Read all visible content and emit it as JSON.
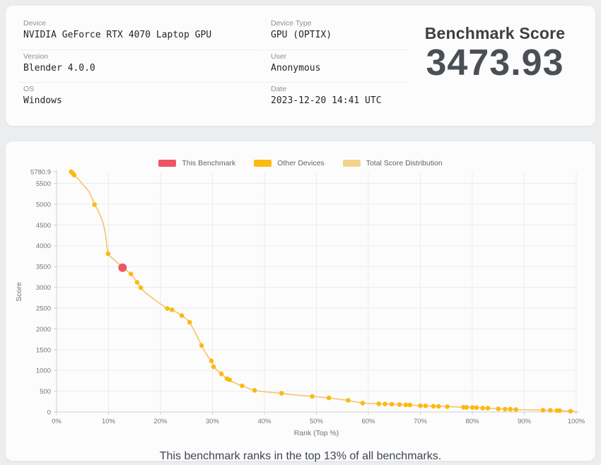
{
  "info_card": {
    "columns": [
      {
        "fields": [
          {
            "label": "Device",
            "value": "NVIDIA GeForce RTX 4070 Laptop GPU"
          },
          {
            "label": "Version",
            "value": "Blender 4.0.0"
          },
          {
            "label": "OS",
            "value": "Windows"
          }
        ]
      },
      {
        "fields": [
          {
            "label": "Device Type",
            "value": "GPU (OPTIX)"
          },
          {
            "label": "User",
            "value": "Anonymous"
          },
          {
            "label": "Date",
            "value": "2023-12-20 14:41 UTC"
          }
        ]
      }
    ],
    "score_title": "Benchmark Score",
    "score_value": "3473.93"
  },
  "chart_card": {
    "caption": "This benchmark ranks in the top 13% of all benchmarks."
  },
  "chart_data": {
    "type": "line",
    "title": "",
    "xlabel": "Rank (Top %)",
    "ylabel": "Score",
    "xlim": [
      0,
      100
    ],
    "ylim": [
      0,
      5780.9
    ],
    "grid": true,
    "legend_position": "top-center",
    "legend": [
      {
        "label": "This Benchmark",
        "color": "#ee5464"
      },
      {
        "label": "Other Devices",
        "color": "#fcba10"
      },
      {
        "label": "Total Score Distribution",
        "color": "#f5d38d"
      }
    ],
    "colors": {
      "grid": "#ebebeb",
      "axis": "#cfcfcf",
      "line": "#f5c979",
      "dot": "#fcba10",
      "benchmark": "#ee5464"
    },
    "x_ticks": [
      {
        "v": 0,
        "label": "0%"
      },
      {
        "v": 10,
        "label": "10%"
      },
      {
        "v": 20,
        "label": "20%"
      },
      {
        "v": 30,
        "label": "30%"
      },
      {
        "v": 40,
        "label": "40%"
      },
      {
        "v": 50,
        "label": "50%"
      },
      {
        "v": 60,
        "label": "60%"
      },
      {
        "v": 70,
        "label": "70%"
      },
      {
        "v": 80,
        "label": "80%"
      },
      {
        "v": 90,
        "label": "90%"
      },
      {
        "v": 100,
        "label": "100%"
      }
    ],
    "y_ticks": [
      {
        "v": 0,
        "label": "0"
      },
      {
        "v": 500,
        "label": "500"
      },
      {
        "v": 1000,
        "label": "1000"
      },
      {
        "v": 1500,
        "label": "1500"
      },
      {
        "v": 2000,
        "label": "2000"
      },
      {
        "v": 2500,
        "label": "2500"
      },
      {
        "v": 3000,
        "label": "3000"
      },
      {
        "v": 3500,
        "label": "3500"
      },
      {
        "v": 4000,
        "label": "4000"
      },
      {
        "v": 4500,
        "label": "4500"
      },
      {
        "v": 5000,
        "label": "5000"
      },
      {
        "v": 5500,
        "label": "5500"
      },
      {
        "v": 5780.9,
        "label": "5780.9"
      }
    ],
    "distribution_line": [
      [
        2.8,
        5780.9
      ],
      [
        3.5,
        5690
      ],
      [
        4.2,
        5600
      ],
      [
        5,
        5480
      ],
      [
        5.6,
        5400
      ],
      [
        6.2,
        5310
      ],
      [
        6.8,
        5150
      ],
      [
        7.3,
        4990
      ],
      [
        7.9,
        4870
      ],
      [
        8.5,
        4700
      ],
      [
        9,
        4530
      ],
      [
        9.4,
        4300
      ],
      [
        9.7,
        4000
      ],
      [
        9.9,
        3810
      ],
      [
        10.4,
        3730
      ],
      [
        11.2,
        3650
      ],
      [
        12,
        3560
      ],
      [
        12.7,
        3474
      ],
      [
        13.5,
        3400
      ],
      [
        14.3,
        3320
      ],
      [
        15,
        3210
      ],
      [
        15.5,
        3120
      ],
      [
        16.2,
        2990
      ],
      [
        17,
        2880
      ],
      [
        18,
        2780
      ],
      [
        19,
        2690
      ],
      [
        20.2,
        2580
      ],
      [
        21.3,
        2490
      ],
      [
        22.2,
        2460
      ],
      [
        23.2,
        2390
      ],
      [
        24.1,
        2320
      ],
      [
        25,
        2240
      ],
      [
        25.6,
        2160
      ],
      [
        26.3,
        2000
      ],
      [
        27,
        1830
      ],
      [
        27.9,
        1600
      ],
      [
        28.6,
        1440
      ],
      [
        29.3,
        1300
      ],
      [
        29.8,
        1230
      ],
      [
        30.2,
        1090
      ],
      [
        31,
        990
      ],
      [
        31.7,
        920
      ],
      [
        32.8,
        800
      ],
      [
        33.8,
        730
      ],
      [
        35,
        660
      ],
      [
        35.7,
        630
      ],
      [
        37,
        565
      ],
      [
        38.1,
        520
      ],
      [
        39.5,
        495
      ],
      [
        41.5,
        470
      ],
      [
        43.3,
        450
      ],
      [
        45.5,
        415
      ],
      [
        47.5,
        392
      ],
      [
        49.2,
        375
      ],
      [
        51,
        355
      ],
      [
        52.4,
        340
      ],
      [
        54.2,
        310
      ],
      [
        56.1,
        280
      ],
      [
        57.5,
        245
      ],
      [
        58.9,
        215
      ],
      [
        60.5,
        205
      ],
      [
        62,
        197
      ],
      [
        64.5,
        187
      ],
      [
        66,
        178
      ],
      [
        68,
        168
      ],
      [
        70,
        152
      ],
      [
        72.5,
        140
      ],
      [
        75.2,
        130
      ],
      [
        77,
        122
      ],
      [
        78.9,
        112
      ],
      [
        80.8,
        105
      ],
      [
        83,
        92
      ],
      [
        85,
        75
      ],
      [
        87.3,
        66
      ],
      [
        88.4,
        58
      ],
      [
        90.5,
        52
      ],
      [
        93.6,
        45
      ],
      [
        95,
        40
      ],
      [
        96.8,
        32
      ],
      [
        98.9,
        20
      ],
      [
        100,
        10
      ]
    ],
    "other_device_points": [
      [
        2.8,
        5780
      ],
      [
        3.1,
        5745
      ],
      [
        3.4,
        5700
      ],
      [
        7.3,
        4990
      ],
      [
        9.9,
        3810
      ],
      [
        14.3,
        3320
      ],
      [
        15.5,
        3120
      ],
      [
        16.2,
        2990
      ],
      [
        21.3,
        2490
      ],
      [
        22.2,
        2460
      ],
      [
        24.1,
        2320
      ],
      [
        25.6,
        2160
      ],
      [
        27.9,
        1600
      ],
      [
        29.8,
        1230
      ],
      [
        30.2,
        1090
      ],
      [
        31.7,
        920
      ],
      [
        32.8,
        800
      ],
      [
        33.3,
        775
      ],
      [
        35.7,
        630
      ],
      [
        38.1,
        520
      ],
      [
        43.3,
        450
      ],
      [
        49.2,
        375
      ],
      [
        52.4,
        340
      ],
      [
        56.1,
        280
      ],
      [
        58.9,
        215
      ],
      [
        62,
        197
      ],
      [
        63.2,
        192
      ],
      [
        64.5,
        187
      ],
      [
        66,
        178
      ],
      [
        67.2,
        172
      ],
      [
        68,
        168
      ],
      [
        70,
        152
      ],
      [
        71,
        148
      ],
      [
        72.5,
        140
      ],
      [
        73.5,
        136
      ],
      [
        75.2,
        130
      ],
      [
        78.3,
        115
      ],
      [
        78.9,
        112
      ],
      [
        80,
        108
      ],
      [
        80.8,
        105
      ],
      [
        82,
        96
      ],
      [
        83,
        92
      ],
      [
        85,
        75
      ],
      [
        86.3,
        70
      ],
      [
        87.3,
        66
      ],
      [
        88.4,
        58
      ],
      [
        93.6,
        45
      ],
      [
        95,
        40
      ],
      [
        96.3,
        34
      ],
      [
        96.8,
        32
      ],
      [
        98.9,
        20
      ]
    ],
    "this_benchmark_point": {
      "x": 12.7,
      "score": 3473.93
    }
  }
}
